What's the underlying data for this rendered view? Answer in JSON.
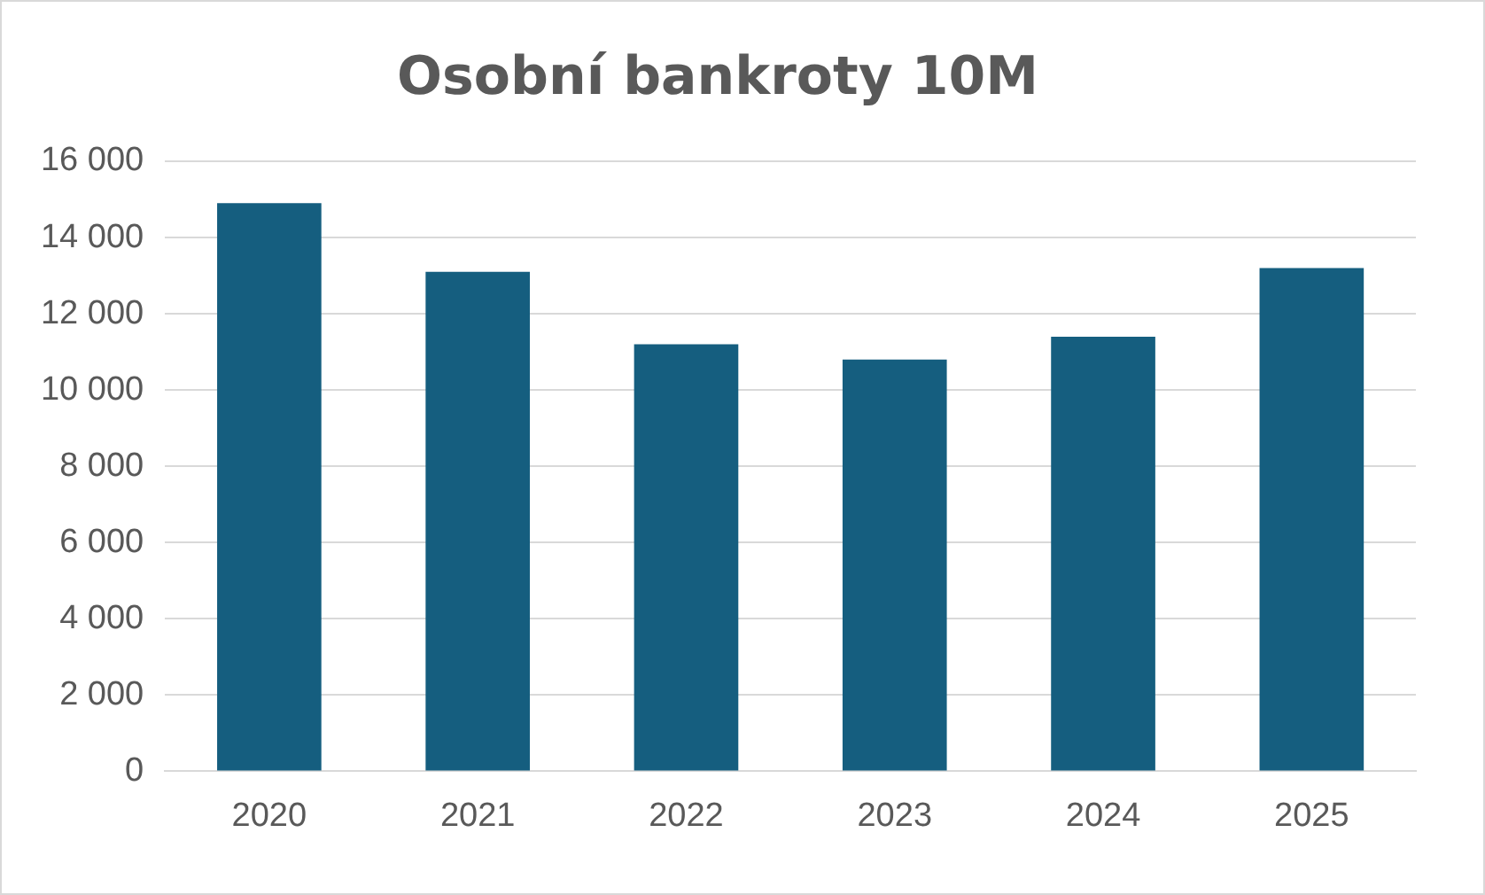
{
  "chart_data": {
    "type": "bar",
    "title": "Osobní bankroty 10M",
    "categories": [
      "2020",
      "2021",
      "2022",
      "2023",
      "2024",
      "2025"
    ],
    "values": [
      14900,
      13100,
      11200,
      10800,
      11400,
      13200
    ],
    "color": "#155e7f",
    "ylim": [
      0,
      16000
    ],
    "yticks": [
      0,
      {
        "value": 2000,
        "label": "2 000"
      },
      {
        "value": 4000,
        "label": "4 000"
      },
      {
        "value": 6000,
        "label": "6 000"
      },
      {
        "value": 8000,
        "label": "8 000"
      },
      {
        "value": 10000,
        "label": "10 000"
      },
      {
        "value": 12000,
        "label": "12 000"
      },
      {
        "value": 14000,
        "label": "14 000"
      },
      {
        "value": 16000,
        "label": "16 000"
      }
    ],
    "grid": "y"
  }
}
